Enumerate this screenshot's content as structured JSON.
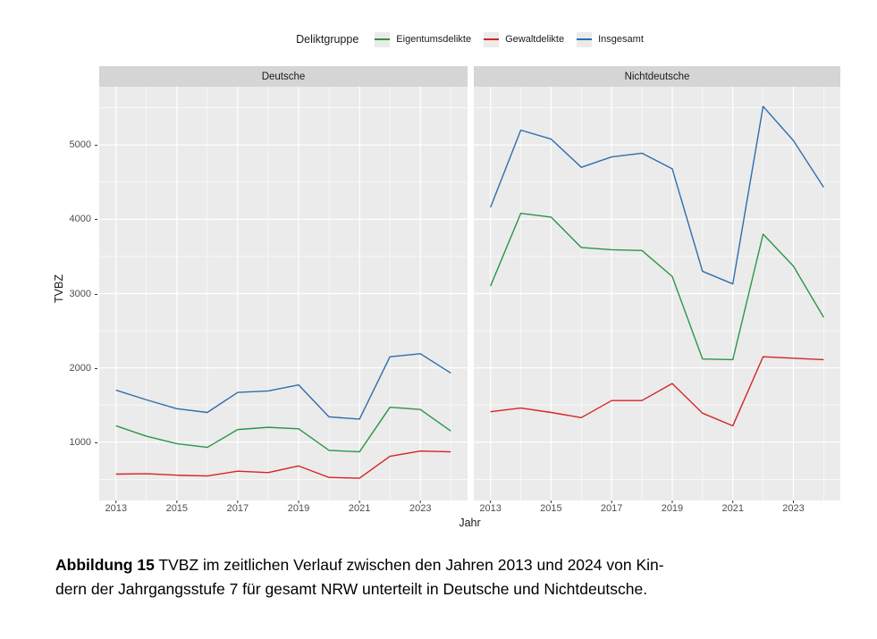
{
  "legend": {
    "title": "Deliktgruppe",
    "items": [
      {
        "label": "Eigentumsdelikte",
        "color": "#2a9648"
      },
      {
        "label": "Gewaltdelikte",
        "color": "#d62426"
      },
      {
        "label": "Insgesamt",
        "color": "#2e6ead"
      }
    ]
  },
  "axes": {
    "y_title": "TVBZ",
    "x_title": "Jahr"
  },
  "caption": {
    "label": "Abbildung 15",
    "line1_rest": " TVBZ im zeitlichen Verlauf zwischen den Jahren 2013 und 2024 von Kin-",
    "line2": "dern der Jahrgangsstufe 7 für gesamt NRW unterteilt in Deutsche und Nichtdeutsche."
  },
  "chart_data": {
    "type": "line",
    "title": "",
    "xlabel": "Jahr",
    "ylabel": "TVBZ",
    "legend_title": "Deliktgruppe",
    "legend_position": "top",
    "x": [
      2013,
      2014,
      2015,
      2016,
      2017,
      2018,
      2019,
      2020,
      2021,
      2022,
      2023,
      2024
    ],
    "x_ticks": [
      2013,
      2015,
      2017,
      2019,
      2021,
      2023
    ],
    "x_minor_ticks": [
      2014,
      2016,
      2018,
      2020,
      2022,
      2024
    ],
    "y_ticks": [
      1000,
      2000,
      3000,
      4000,
      5000
    ],
    "y_minor_ticks": [
      500,
      1500,
      2500,
      3500,
      4500,
      5500
    ],
    "xlim": [
      2012.45,
      2024.55
    ],
    "ylim": [
      215,
      5785
    ],
    "grid": "white major and minor gridlines on gray panel",
    "panel_bg": "#ebebeb",
    "strip_bg": "#d5d5d5",
    "facets": [
      {
        "title": "Deutsche",
        "series": [
          {
            "name": "Eigentumsdelikte",
            "color": "#2a9648",
            "values": [
              1220,
              1080,
              980,
              930,
              1170,
              1200,
              1180,
              890,
              870,
              1470,
              1440,
              1150
            ]
          },
          {
            "name": "Gewaltdelikte",
            "color": "#d62426",
            "values": [
              570,
              575,
              555,
              545,
              610,
              590,
              680,
              525,
              515,
              810,
              880,
              870
            ]
          },
          {
            "name": "Insgesamt",
            "color": "#2e6ead",
            "values": [
              1700,
              1570,
              1450,
              1400,
              1670,
              1690,
              1770,
              1340,
              1310,
              2150,
              2190,
              1930
            ]
          }
        ]
      },
      {
        "title": "Nichtdeutsche",
        "series": [
          {
            "name": "Eigentumsdelikte",
            "color": "#2a9648",
            "values": [
              3100,
              4080,
              4030,
              3620,
              3590,
              3580,
              3230,
              2120,
              2110,
              3800,
              3370,
              2680
            ]
          },
          {
            "name": "Gewaltdelikte",
            "color": "#d62426",
            "values": [
              1410,
              1460,
              1400,
              1330,
              1560,
              1560,
              1790,
              1390,
              1220,
              2150,
              2130,
              2110
            ]
          },
          {
            "name": "Insgesamt",
            "color": "#2e6ead",
            "values": [
              4160,
              5200,
              5080,
              4700,
              4840,
              4890,
              4680,
              3300,
              3130,
              5520,
              5060,
              4430
            ]
          }
        ]
      }
    ]
  }
}
